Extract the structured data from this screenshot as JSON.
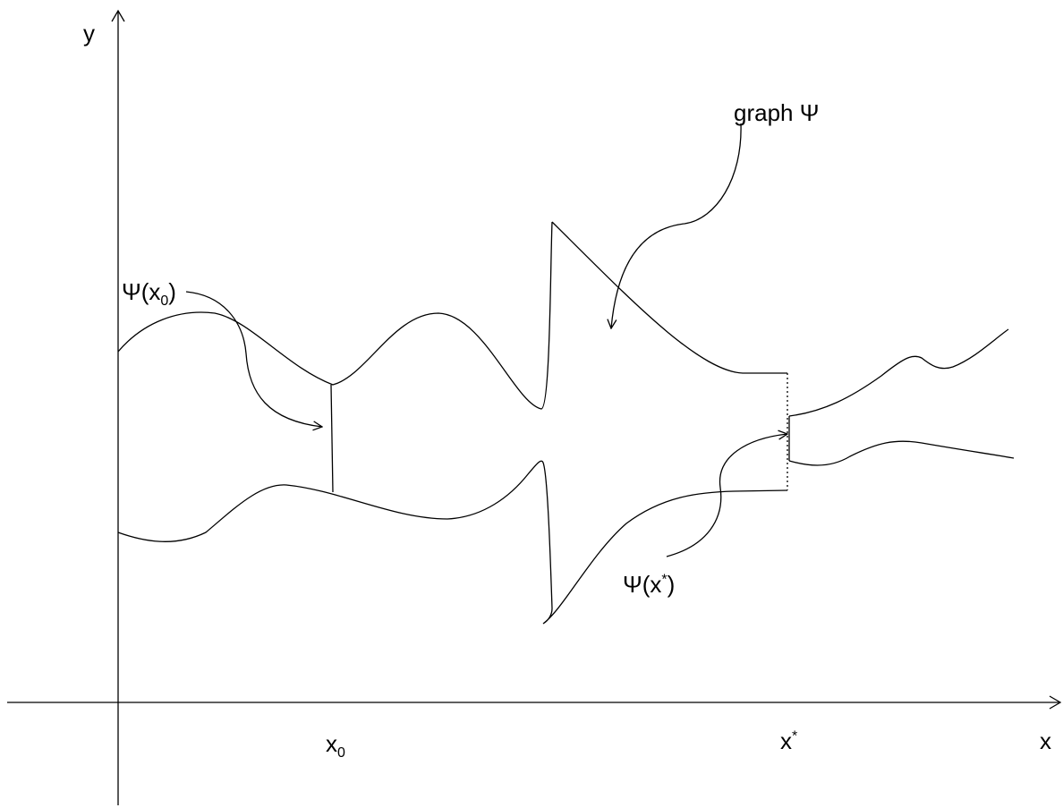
{
  "axes": {
    "x_label": "x",
    "y_label": "y"
  },
  "ticks": {
    "x0": {
      "base": "x",
      "sub": "0"
    },
    "xstar": {
      "base": "x",
      "sup": "*"
    }
  },
  "annotations": {
    "graph_label": "graph Ψ",
    "psi_x0": {
      "prefix": "Ψ(x",
      "sub": "0",
      "suffix": ")"
    },
    "psi_xstar": {
      "prefix": "Ψ(x",
      "sup": "*",
      "suffix": ")"
    }
  },
  "colors": {
    "ink": "#000000",
    "background": "#ffffff"
  }
}
